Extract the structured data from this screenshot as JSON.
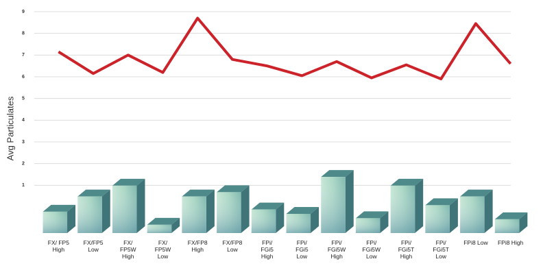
{
  "chart_data": {
    "type": "bar_line",
    "y_axis_label": "Avg Particulates",
    "categories": [
      "FX/ FP5\nHigh",
      "FX/FP5\nLow",
      "FX/\nFP5W\nHigh",
      "FX/\nFP5W\nLow",
      "FX/FP8\nHigh",
      "FX/FP8\nLow",
      "FPi/\nFGi5\nHigh",
      "FPi/\nFGi5\nLow",
      "FPi/\nFGi5W\nHigh",
      "FPi/\nFGi5W\nLow",
      "FPi/\nFGi5T\nHigh",
      "FPi/\nFGi5T\nLow",
      "FPi8 Low",
      "FPi8 High"
    ],
    "series": [
      {
        "type": "bar",
        "color": "#9fcfbf",
        "values": [
          1.3,
          2.0,
          2.5,
          0.7,
          2.0,
          2.2,
          1.4,
          1.2,
          2.9,
          1.0,
          2.5,
          1.6,
          2.0,
          0.95
        ]
      },
      {
        "type": "line",
        "color": "#cc2229",
        "values": [
          7.15,
          6.15,
          7.0,
          6.2,
          8.7,
          6.8,
          6.5,
          6.05,
          6.7,
          5.95,
          6.55,
          5.9,
          8.45,
          6.6
        ]
      }
    ],
    "ylim": [
      0,
      9
    ],
    "yticks": [
      1,
      2,
      3,
      4,
      5,
      6,
      7,
      8,
      9
    ],
    "grid": true
  }
}
